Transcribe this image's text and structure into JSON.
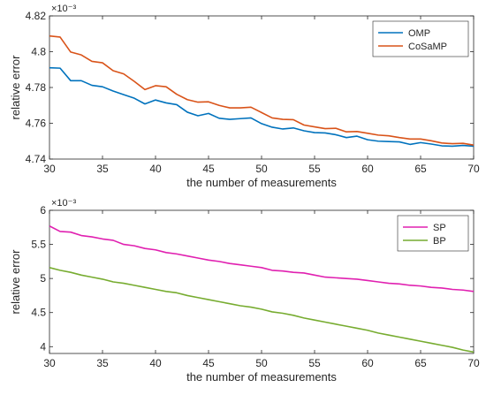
{
  "chart_data": [
    {
      "type": "line",
      "xlabel": "the number of measurements",
      "ylabel": "relative error",
      "xlim": [
        30,
        70
      ],
      "ylim": [
        4.74,
        4.82
      ],
      "y_multiplier_label": "×10⁻³",
      "x_ticks": [
        30,
        35,
        40,
        45,
        50,
        55,
        60,
        65,
        70
      ],
      "y_ticks": [
        4.74,
        4.76,
        4.78,
        4.8,
        4.82
      ],
      "y_tick_labels": [
        "4.74",
        "4.76",
        "4.78",
        "4.8",
        "4.82"
      ],
      "legend_position": "top-right",
      "grid": false,
      "x": [
        30,
        31,
        32,
        33,
        34,
        35,
        36,
        37,
        38,
        39,
        40,
        41,
        42,
        43,
        44,
        45,
        46,
        47,
        48,
        49,
        50,
        51,
        52,
        53,
        54,
        55,
        56,
        57,
        58,
        59,
        60,
        61,
        62,
        63,
        64,
        65,
        66,
        67,
        68,
        69,
        70
      ],
      "series": [
        {
          "name": "OMP",
          "color": "#0072BD",
          "values": [
            4.791,
            4.7908,
            4.7838,
            4.7838,
            4.7812,
            4.7804,
            4.778,
            4.776,
            4.774,
            4.7708,
            4.773,
            4.7714,
            4.7704,
            4.7662,
            4.7642,
            4.7655,
            4.7628,
            4.7622,
            4.7626,
            4.763,
            4.7598,
            4.7578,
            4.7568,
            4.7574,
            4.7558,
            4.7548,
            4.7546,
            4.7536,
            4.752,
            4.7528,
            4.7508,
            4.75,
            4.7498,
            4.7496,
            4.7482,
            4.7492,
            4.7484,
            4.7474,
            4.7472,
            4.7476,
            4.7472
          ]
        },
        {
          "name": "CoSaMP",
          "color": "#D95319",
          "values": [
            4.8088,
            4.8082,
            4.7998,
            4.7982,
            4.7946,
            4.7938,
            4.7894,
            4.7876,
            4.7834,
            4.7788,
            4.781,
            4.7804,
            4.7762,
            4.7732,
            4.7718,
            4.772,
            4.77,
            4.7686,
            4.7686,
            4.769,
            4.766,
            4.763,
            4.7622,
            4.762,
            4.759,
            4.758,
            4.757,
            4.7572,
            4.7552,
            4.7554,
            4.7544,
            4.7534,
            4.753,
            4.752,
            4.7512,
            4.7512,
            4.7502,
            4.749,
            4.7486,
            4.7488,
            4.7478
          ]
        }
      ]
    },
    {
      "type": "line",
      "xlabel": "the number of measurements",
      "ylabel": "relative error",
      "xlim": [
        30,
        70
      ],
      "ylim": [
        3.9,
        6.0
      ],
      "y_multiplier_label": "×10⁻³",
      "x_ticks": [
        30,
        35,
        40,
        45,
        50,
        55,
        60,
        65,
        70
      ],
      "y_ticks": [
        4,
        4.5,
        5,
        5.5,
        6
      ],
      "y_tick_labels": [
        "4",
        "4.5",
        "5",
        "5.5",
        "6"
      ],
      "legend_position": "top-right",
      "grid": false,
      "x": [
        30,
        31,
        32,
        33,
        34,
        35,
        36,
        37,
        38,
        39,
        40,
        41,
        42,
        43,
        44,
        45,
        46,
        47,
        48,
        49,
        50,
        51,
        52,
        53,
        54,
        55,
        56,
        57,
        58,
        59,
        60,
        61,
        62,
        63,
        64,
        65,
        66,
        67,
        68,
        69,
        70
      ],
      "series": [
        {
          "name": "SP",
          "color": "#E020B0",
          "values": [
            5.77,
            5.69,
            5.68,
            5.63,
            5.61,
            5.58,
            5.56,
            5.5,
            5.48,
            5.44,
            5.42,
            5.38,
            5.36,
            5.33,
            5.3,
            5.27,
            5.25,
            5.22,
            5.2,
            5.18,
            5.16,
            5.12,
            5.11,
            5.09,
            5.08,
            5.05,
            5.02,
            5.01,
            5.0,
            4.99,
            4.97,
            4.95,
            4.93,
            4.92,
            4.9,
            4.89,
            4.87,
            4.86,
            4.84,
            4.83,
            4.81
          ]
        },
        {
          "name": "BP",
          "color": "#77AC30",
          "values": [
            5.16,
            5.12,
            5.09,
            5.05,
            5.02,
            4.99,
            4.95,
            4.93,
            4.9,
            4.87,
            4.84,
            4.81,
            4.79,
            4.75,
            4.72,
            4.69,
            4.66,
            4.63,
            4.6,
            4.58,
            4.55,
            4.51,
            4.49,
            4.46,
            4.42,
            4.39,
            4.36,
            4.33,
            4.3,
            4.27,
            4.24,
            4.2,
            4.17,
            4.14,
            4.11,
            4.08,
            4.05,
            4.02,
            3.99,
            3.95,
            3.92
          ]
        }
      ]
    }
  ]
}
